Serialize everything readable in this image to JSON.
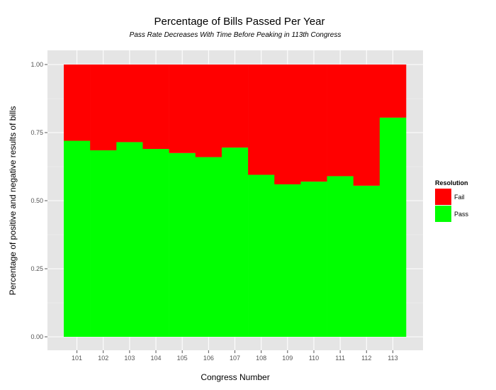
{
  "chart_data": {
    "type": "bar",
    "stacked": true,
    "title": "Percentage of Bills Passed Per Year",
    "subtitle": "Pass Rate Decreases With Time Before Peaking in 113th Congress",
    "xlabel": "Congress Number",
    "ylabel": "Percentage of positive and negative results of bills",
    "categories": [
      "101",
      "102",
      "103",
      "104",
      "105",
      "106",
      "107",
      "108",
      "109",
      "110",
      "111",
      "112",
      "113"
    ],
    "ylim": [
      0,
      1
    ],
    "yticks": [
      "0.00",
      "0.25",
      "0.50",
      "0.75",
      "1.00"
    ],
    "ytick_values": [
      0,
      0.25,
      0.5,
      0.75,
      1.0
    ],
    "grid": true,
    "legend": {
      "title": "Resolution",
      "placement": "right"
    },
    "series": [
      {
        "name": "Pass",
        "color": "#00ff00",
        "values": [
          0.72,
          0.685,
          0.715,
          0.69,
          0.675,
          0.66,
          0.695,
          0.595,
          0.56,
          0.57,
          0.59,
          0.555,
          0.805
        ]
      },
      {
        "name": "Fail",
        "color": "#ff0000",
        "values": [
          0.28,
          0.315,
          0.285,
          0.31,
          0.325,
          0.34,
          0.305,
          0.405,
          0.44,
          0.43,
          0.41,
          0.445,
          0.195
        ]
      }
    ],
    "legend_order": [
      "Fail",
      "Pass"
    ],
    "panel_color": "#e5e5e5",
    "grid_color": "#ffffff"
  }
}
